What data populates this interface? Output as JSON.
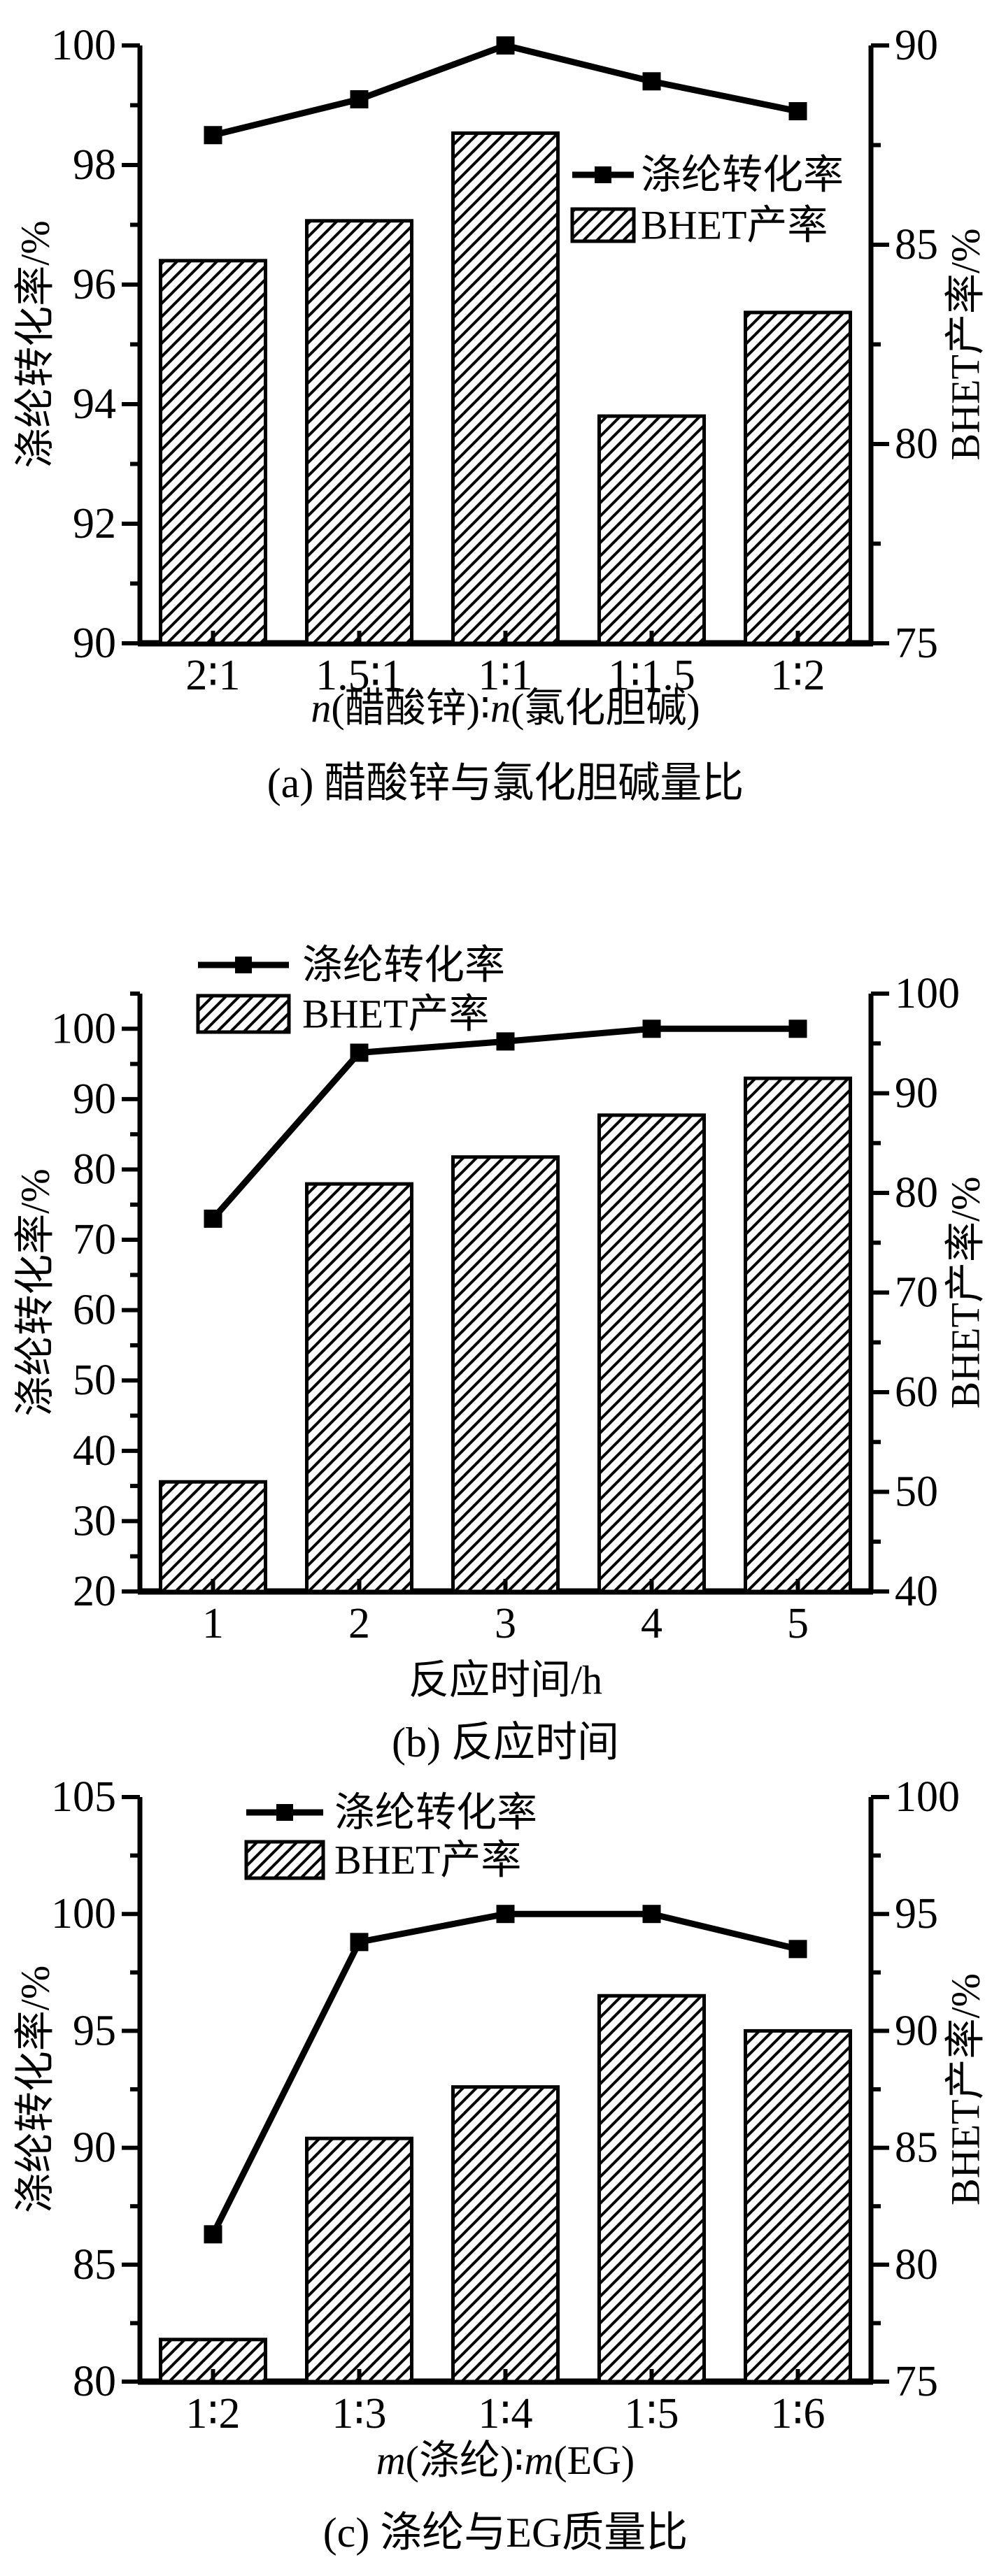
{
  "figure": {
    "background": "#ffffff",
    "ink_color": "#000000",
    "legend": {
      "line_label": "涤纶转化率",
      "bar_label": "BHET产率"
    }
  },
  "chart_data": [
    {
      "id": "a",
      "type": "bar+line",
      "caption": "(a) 醋酸锌与氯化胆碱量比",
      "xlabel": "n(醋酸锌)∶n(氯化胆碱)",
      "categories": [
        "2∶1",
        "1.5∶1",
        "1∶1",
        "1∶1.5",
        "1∶2"
      ],
      "series": [
        {
          "name": "涤纶转化率",
          "type": "line",
          "axis": "left",
          "values": [
            98.5,
            99.1,
            100.0,
            99.4,
            98.9
          ]
        },
        {
          "name": "BHET产率",
          "type": "bar",
          "axis": "right",
          "values": [
            84.6,
            85.6,
            87.8,
            80.7,
            83.3
          ]
        }
      ],
      "left_axis": {
        "label": "涤纶转化率/%",
        "min": 90,
        "max": 100,
        "major": 2,
        "minor": 1,
        "label_max": 100
      },
      "right_axis": {
        "label": "BHET产率/%",
        "min": 75,
        "max": 90,
        "major": 5,
        "minor": 2.5,
        "label_max": 90
      },
      "grid": false,
      "legend_position": "inside-top-right"
    },
    {
      "id": "b",
      "type": "bar+line",
      "caption": "(b) 反应时间",
      "xlabel": "反应时间/h",
      "categories": [
        "1",
        "2",
        "3",
        "4",
        "5"
      ],
      "series": [
        {
          "name": "涤纶转化率",
          "type": "line",
          "axis": "left",
          "values": [
            73.0,
            96.6,
            98.2,
            100.0,
            100.0
          ]
        },
        {
          "name": "BHET产率",
          "type": "bar",
          "axis": "right",
          "values": [
            51.0,
            80.9,
            83.6,
            87.8,
            91.5
          ]
        }
      ],
      "left_axis": {
        "label": "涤纶转化率/%",
        "min": 20,
        "max": 105,
        "major": 10,
        "minor": 5,
        "label_max": 100
      },
      "right_axis": {
        "label": "BHET产率/%",
        "min": 40,
        "max": 100,
        "major": 10,
        "minor": 5,
        "label_max": 100
      },
      "grid": false,
      "legend_position": "above-top-left"
    },
    {
      "id": "c",
      "type": "bar+line",
      "caption": "(c) 涤纶与EG质量比",
      "xlabel": "m(涤纶)∶m(EG)",
      "categories": [
        "1∶2",
        "1∶3",
        "1∶4",
        "1∶5",
        "1∶6"
      ],
      "series": [
        {
          "name": "涤纶转化率",
          "type": "line",
          "axis": "left",
          "values": [
            86.3,
            98.8,
            100.0,
            100.0,
            98.5
          ]
        },
        {
          "name": "BHET产率",
          "type": "bar",
          "axis": "right",
          "values": [
            76.8,
            85.4,
            87.6,
            91.5,
            90.0
          ]
        }
      ],
      "left_axis": {
        "label": "涤纶转化率/%",
        "min": 80,
        "max": 105,
        "major": 5,
        "minor": 2.5,
        "label_max": 105
      },
      "right_axis": {
        "label": "BHET产率/%",
        "min": 75,
        "max": 100,
        "major": 5,
        "minor": 2.5,
        "label_max": 100
      },
      "grid": false,
      "legend_position": "inside-top-left"
    }
  ]
}
